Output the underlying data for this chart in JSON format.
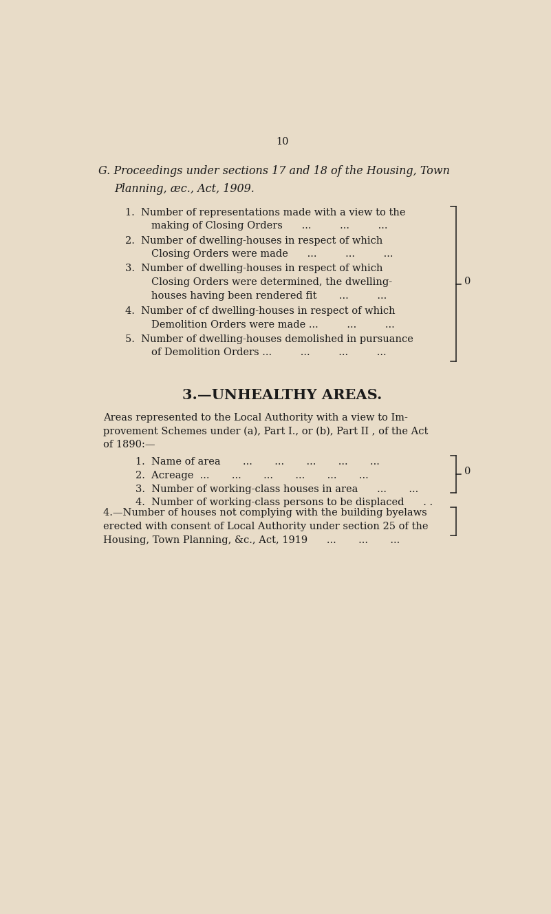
{
  "background_color": "#e8dcc8",
  "page_number": "10",
  "text_color": "#1a1a1a",
  "font_size_body": 10.5,
  "font_size_title_g": 11.5,
  "font_size_section3": 15,
  "section_g_title_line1": "G. Proceedings under sections 17 and 18 of the Housing, Town",
  "section_g_title_line2": "Planning, æc., Act, 1909.",
  "g_items": [
    [
      "1.  Number of representations made with a view to the",
      "making of Closing Orders      ...         ...         ..."
    ],
    [
      "2.  Number of dwelling-houses in respect of which",
      "Closing Orders were made      ...         ...         ..."
    ],
    [
      "3.  Number of dwelling-houses in respect of which",
      "Closing Orders were determined, the dwelling-",
      "houses having been rendered fit       ...         ..."
    ],
    [
      "4.  Number of cf dwelling-houses in respect of which",
      "Demolition Orders were made ...         ...         ..."
    ],
    [
      "5.  Number of dwelling-houses demolished in pursuance",
      "of Demolition Orders ...         ...         ...         ..."
    ]
  ],
  "section_3_title": "3.—UNHEALTHY AREAS.",
  "section_3_intro": [
    "Areas represented to the Local Authority with a view to Im-",
    "provement Schemes under (a), Part I., or (b), Part II , of the Act",
    "of 1890:—"
  ],
  "s3_items": [
    "1.  Name of area       ...       ...       ...       ...       ...",
    "2.  Acreage  ...       ...       ...       ...       ...       ...",
    "3.  Number of working-class houses in area      ...       ...",
    "4.  Number of working-class persons to be displaced      . ."
  ],
  "section_4_lines": [
    "4.—Number of houses not complying with the building byelaws",
    "erected with consent of Local Authority under section 25 of the",
    "Housing, Town Planning, &c., Act, 1919      ...       ...       ..."
  ]
}
